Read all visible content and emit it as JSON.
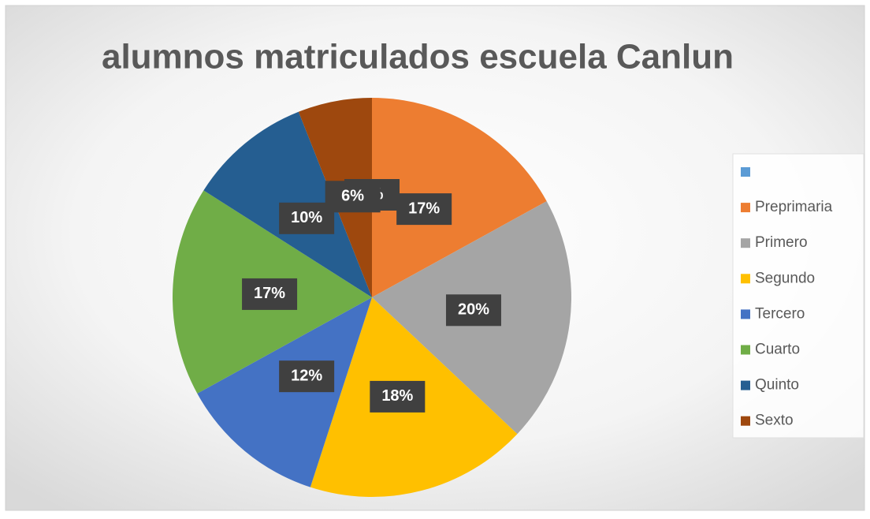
{
  "chart_data": {
    "type": "pie",
    "title": "alumnos matriculados escuela Canlun",
    "categories": [
      null,
      "Preprimaria",
      "Primero",
      "Segundo",
      "Tercero",
      "Cuarto",
      "Quinto",
      "Sexto"
    ],
    "values": [
      0,
      17,
      20,
      18,
      12,
      17,
      10,
      6
    ],
    "value_labels": [
      "0%",
      "17%",
      "20%",
      "18%",
      "12%",
      "17%",
      "10%",
      "6%"
    ],
    "colors": [
      "#5b9bd5",
      "#ed7d31",
      "#a5a5a5",
      "#ffc000",
      "#4472c4",
      "#70ad47",
      "#255e91",
      "#9e480e"
    ],
    "legend": "right"
  }
}
